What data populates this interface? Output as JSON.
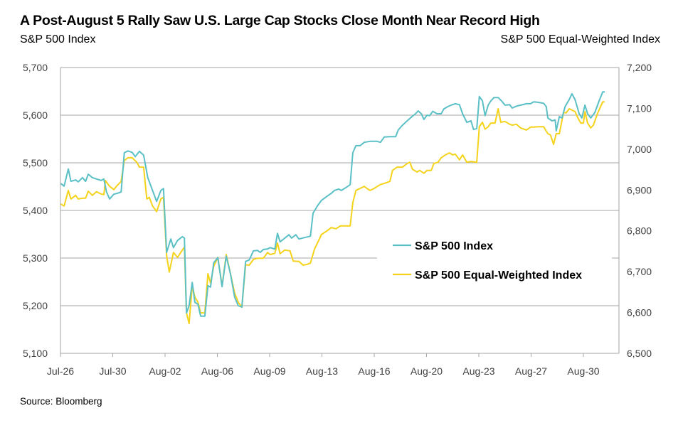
{
  "title": "A Post-August 5 Rally Saw U.S. Large Cap Stocks Close Month Near Record High",
  "left_axis_title": "S&P 500 Index",
  "right_axis_title": "S&P 500 Equal-Weighted Index",
  "source": "Source: Bloomberg",
  "chart_data": {
    "type": "line",
    "title": "A Post-August 5 Rally Saw U.S. Large Cap Stocks Close Month Near Record High",
    "x_ticks": [
      "Jul-26",
      "Jul-30",
      "Aug-02",
      "Aug-06",
      "Aug-09",
      "Aug-13",
      "Aug-16",
      "Aug-20",
      "Aug-23",
      "Aug-27",
      "Aug-30"
    ],
    "x_note_units": "x positions expressed in x-tick index units",
    "x_range": [
      0,
      10.7
    ],
    "left_axis": {
      "label": "S&P 500 Index",
      "range": [
        5100,
        5700
      ],
      "ticks": [
        "5,100",
        "5,200",
        "5,300",
        "5,400",
        "5,500",
        "5,600",
        "5,700"
      ]
    },
    "right_axis": {
      "label": "S&P 500 Equal-Weighted Index",
      "range": [
        6500,
        7200
      ],
      "ticks": [
        "6,500",
        "6,600",
        "6,700",
        "6,800",
        "6,900",
        "7,000",
        "7,100",
        "7,200"
      ]
    },
    "grid": true,
    "legend_position": "center-right",
    "series": [
      {
        "name": "S&P 500 Index",
        "axis": "left",
        "color": "#5BC0C6",
        "points": [
          [
            0,
            5457
          ],
          [
            0.07,
            5451
          ],
          [
            0.15,
            5487
          ],
          [
            0.2,
            5461
          ],
          [
            0.29,
            5464
          ],
          [
            0.34,
            5460
          ],
          [
            0.42,
            5469
          ],
          [
            0.48,
            5461
          ],
          [
            0.53,
            5476
          ],
          [
            0.61,
            5469
          ],
          [
            0.69,
            5466
          ],
          [
            0.78,
            5463
          ],
          [
            0.83,
            5466
          ],
          [
            0.88,
            5439
          ],
          [
            0.94,
            5424
          ],
          [
            1.02,
            5434
          ],
          [
            1.09,
            5436
          ],
          [
            1.16,
            5439
          ],
          [
            1.22,
            5521
          ],
          [
            1.29,
            5525
          ],
          [
            1.37,
            5522
          ],
          [
            1.43,
            5513
          ],
          [
            1.51,
            5524
          ],
          [
            1.59,
            5516
          ],
          [
            1.67,
            5469
          ],
          [
            1.76,
            5442
          ],
          [
            1.84,
            5419
          ],
          [
            1.92,
            5442
          ],
          [
            1.97,
            5446
          ],
          [
            2.03,
            5312
          ],
          [
            2.11,
            5340
          ],
          [
            2.16,
            5322
          ],
          [
            2.24,
            5337
          ],
          [
            2.33,
            5345
          ],
          [
            2.37,
            5342
          ],
          [
            2.41,
            5185
          ],
          [
            2.46,
            5200
          ],
          [
            2.52,
            5249
          ],
          [
            2.57,
            5207
          ],
          [
            2.63,
            5203
          ],
          [
            2.68,
            5178
          ],
          [
            2.76,
            5178
          ],
          [
            2.82,
            5242
          ],
          [
            2.87,
            5239
          ],
          [
            2.93,
            5290
          ],
          [
            3.01,
            5301
          ],
          [
            3.09,
            5240
          ],
          [
            3.17,
            5304
          ],
          [
            3.25,
            5267
          ],
          [
            3.33,
            5218
          ],
          [
            3.4,
            5200
          ],
          [
            3.47,
            5197
          ],
          [
            3.54,
            5293
          ],
          [
            3.61,
            5296
          ],
          [
            3.69,
            5315
          ],
          [
            3.77,
            5316
          ],
          [
            3.82,
            5312
          ],
          [
            3.88,
            5318
          ],
          [
            3.96,
            5319
          ],
          [
            4.01,
            5322
          ],
          [
            4.1,
            5319
          ],
          [
            4.15,
            5352
          ],
          [
            4.2,
            5334
          ],
          [
            4.29,
            5342
          ],
          [
            4.37,
            5349
          ],
          [
            4.42,
            5342
          ],
          [
            4.5,
            5349
          ],
          [
            4.56,
            5340
          ],
          [
            4.67,
            5343
          ],
          [
            4.78,
            5346
          ],
          [
            4.83,
            5394
          ],
          [
            4.91,
            5409
          ],
          [
            4.99,
            5421
          ],
          [
            5.1,
            5430
          ],
          [
            5.18,
            5436
          ],
          [
            5.24,
            5442
          ],
          [
            5.32,
            5445
          ],
          [
            5.37,
            5442
          ],
          [
            5.46,
            5448
          ],
          [
            5.54,
            5454
          ],
          [
            5.59,
            5521
          ],
          [
            5.65,
            5536
          ],
          [
            5.73,
            5536
          ],
          [
            5.81,
            5543
          ],
          [
            5.92,
            5545
          ],
          [
            6.05,
            5545
          ],
          [
            6.12,
            5543
          ],
          [
            6.19,
            5554
          ],
          [
            6.3,
            5555
          ],
          [
            6.41,
            5555
          ],
          [
            6.46,
            5569
          ],
          [
            6.54,
            5579
          ],
          [
            6.63,
            5588
          ],
          [
            6.71,
            5596
          ],
          [
            6.79,
            5603
          ],
          [
            6.84,
            5609
          ],
          [
            6.9,
            5603
          ],
          [
            6.95,
            5591
          ],
          [
            7.01,
            5600
          ],
          [
            7.06,
            5599
          ],
          [
            7.12,
            5608
          ],
          [
            7.2,
            5603
          ],
          [
            7.28,
            5603
          ],
          [
            7.33,
            5613
          ],
          [
            7.41,
            5618
          ],
          [
            7.47,
            5621
          ],
          [
            7.55,
            5624
          ],
          [
            7.63,
            5622
          ],
          [
            7.69,
            5603
          ],
          [
            7.77,
            5585
          ],
          [
            7.85,
            5588
          ],
          [
            7.9,
            5570
          ],
          [
            7.96,
            5572
          ],
          [
            8.01,
            5639
          ],
          [
            8.07,
            5630
          ],
          [
            8.12,
            5599
          ],
          [
            8.18,
            5621
          ],
          [
            8.23,
            5630
          ],
          [
            8.29,
            5637
          ],
          [
            8.37,
            5637
          ],
          [
            8.45,
            5628
          ],
          [
            8.5,
            5621
          ],
          [
            8.59,
            5622
          ],
          [
            8.64,
            5615
          ],
          [
            8.72,
            5619
          ],
          [
            8.8,
            5621
          ],
          [
            8.91,
            5624
          ],
          [
            8.99,
            5624
          ],
          [
            9.05,
            5628
          ],
          [
            9.13,
            5627
          ],
          [
            9.24,
            5625
          ],
          [
            9.29,
            5618
          ],
          [
            9.32,
            5594
          ],
          [
            9.4,
            5588
          ],
          [
            9.46,
            5590
          ],
          [
            9.48,
            5567
          ],
          [
            9.54,
            5597
          ],
          [
            9.59,
            5594
          ],
          [
            9.65,
            5618
          ],
          [
            9.73,
            5633
          ],
          [
            9.78,
            5645
          ],
          [
            9.84,
            5633
          ],
          [
            9.92,
            5603
          ],
          [
            9.97,
            5594
          ],
          [
            10.03,
            5621
          ],
          [
            10.08,
            5603
          ],
          [
            10.14,
            5594
          ],
          [
            10.22,
            5606
          ],
          [
            10.3,
            5630
          ],
          [
            10.37,
            5649
          ],
          [
            10.41,
            5649
          ]
        ]
      },
      {
        "name": "S&P 500 Equal-Weighted Index",
        "axis": "right",
        "color": "#F5D31C",
        "points": [
          [
            0,
            6866
          ],
          [
            0.07,
            6861
          ],
          [
            0.15,
            6899
          ],
          [
            0.2,
            6878
          ],
          [
            0.29,
            6887
          ],
          [
            0.34,
            6878
          ],
          [
            0.42,
            6880
          ],
          [
            0.48,
            6880
          ],
          [
            0.53,
            6897
          ],
          [
            0.61,
            6887
          ],
          [
            0.69,
            6896
          ],
          [
            0.78,
            6890
          ],
          [
            0.83,
            6889
          ],
          [
            0.86,
            6923
          ],
          [
            0.94,
            6909
          ],
          [
            1.02,
            6901
          ],
          [
            1.07,
            6909
          ],
          [
            1.16,
            6921
          ],
          [
            1.22,
            6972
          ],
          [
            1.29,
            6979
          ],
          [
            1.37,
            6979
          ],
          [
            1.46,
            6968
          ],
          [
            1.51,
            6956
          ],
          [
            1.59,
            6956
          ],
          [
            1.65,
            6878
          ],
          [
            1.7,
            6882
          ],
          [
            1.76,
            6861
          ],
          [
            1.84,
            6847
          ],
          [
            1.92,
            6878
          ],
          [
            1.97,
            6882
          ],
          [
            2.03,
            6739
          ],
          [
            2.08,
            6699
          ],
          [
            2.16,
            6747
          ],
          [
            2.24,
            6735
          ],
          [
            2.33,
            6753
          ],
          [
            2.37,
            6760
          ],
          [
            2.41,
            6599
          ],
          [
            2.46,
            6573
          ],
          [
            2.52,
            6665
          ],
          [
            2.57,
            6638
          ],
          [
            2.63,
            6625
          ],
          [
            2.68,
            6599
          ],
          [
            2.76,
            6599
          ],
          [
            2.82,
            6695
          ],
          [
            2.87,
            6672
          ],
          [
            2.93,
            6713
          ],
          [
            3.01,
            6735
          ],
          [
            3.09,
            6665
          ],
          [
            3.17,
            6742
          ],
          [
            3.25,
            6695
          ],
          [
            3.33,
            6648
          ],
          [
            3.4,
            6625
          ],
          [
            3.47,
            6613
          ],
          [
            3.54,
            6717
          ],
          [
            3.61,
            6716
          ],
          [
            3.69,
            6730
          ],
          [
            3.77,
            6733
          ],
          [
            3.88,
            6733
          ],
          [
            3.96,
            6747
          ],
          [
            4.01,
            6742
          ],
          [
            4.1,
            6745
          ],
          [
            4.15,
            6770
          ],
          [
            4.2,
            6744
          ],
          [
            4.29,
            6753
          ],
          [
            4.39,
            6751
          ],
          [
            4.45,
            6726
          ],
          [
            4.56,
            6725
          ],
          [
            4.64,
            6716
          ],
          [
            4.72,
            6718
          ],
          [
            4.78,
            6721
          ],
          [
            4.86,
            6756
          ],
          [
            4.94,
            6777
          ],
          [
            4.99,
            6791
          ],
          [
            5.1,
            6800
          ],
          [
            5.18,
            6808
          ],
          [
            5.27,
            6805
          ],
          [
            5.35,
            6812
          ],
          [
            5.46,
            6812
          ],
          [
            5.54,
            6812
          ],
          [
            5.59,
            6869
          ],
          [
            5.65,
            6899
          ],
          [
            5.73,
            6904
          ],
          [
            5.81,
            6909
          ],
          [
            5.86,
            6904
          ],
          [
            5.92,
            6899
          ],
          [
            6.0,
            6904
          ],
          [
            6.11,
            6913
          ],
          [
            6.19,
            6916
          ],
          [
            6.3,
            6921
          ],
          [
            6.35,
            6948
          ],
          [
            6.44,
            6956
          ],
          [
            6.54,
            6956
          ],
          [
            6.63,
            6965
          ],
          [
            6.68,
            6968
          ],
          [
            6.73,
            6951
          ],
          [
            6.82,
            6944
          ],
          [
            6.87,
            6948
          ],
          [
            6.95,
            6941
          ],
          [
            7.01,
            6948
          ],
          [
            7.09,
            6948
          ],
          [
            7.14,
            6965
          ],
          [
            7.22,
            6968
          ],
          [
            7.28,
            6979
          ],
          [
            7.36,
            6986
          ],
          [
            7.44,
            6991
          ],
          [
            7.5,
            6986
          ],
          [
            7.55,
            6988
          ],
          [
            7.63,
            6974
          ],
          [
            7.69,
            6986
          ],
          [
            7.77,
            6968
          ],
          [
            7.85,
            6970
          ],
          [
            7.96,
            6968
          ],
          [
            8.01,
            7055
          ],
          [
            8.07,
            7066
          ],
          [
            8.12,
            7049
          ],
          [
            8.18,
            7055
          ],
          [
            8.23,
            7064
          ],
          [
            8.31,
            7064
          ],
          [
            8.37,
            7099
          ],
          [
            8.42,
            7066
          ],
          [
            8.5,
            7068
          ],
          [
            8.59,
            7061
          ],
          [
            8.64,
            7059
          ],
          [
            8.72,
            7061
          ],
          [
            8.8,
            7052
          ],
          [
            8.91,
            7047
          ],
          [
            8.99,
            7054
          ],
          [
            9.05,
            7054
          ],
          [
            9.13,
            7055
          ],
          [
            9.24,
            7055
          ],
          [
            9.32,
            7038
          ],
          [
            9.37,
            7035
          ],
          [
            9.43,
            7012
          ],
          [
            9.48,
            7038
          ],
          [
            9.54,
            7038
          ],
          [
            9.62,
            7090
          ],
          [
            9.67,
            7089
          ],
          [
            9.73,
            7099
          ],
          [
            9.84,
            7092
          ],
          [
            9.89,
            7078
          ],
          [
            9.95,
            7064
          ],
          [
            10.0,
            7064
          ],
          [
            10.03,
            7092
          ],
          [
            10.08,
            7064
          ],
          [
            10.14,
            7052
          ],
          [
            10.19,
            7059
          ],
          [
            10.27,
            7087
          ],
          [
            10.37,
            7116
          ],
          [
            10.41,
            7116
          ]
        ]
      }
    ]
  }
}
